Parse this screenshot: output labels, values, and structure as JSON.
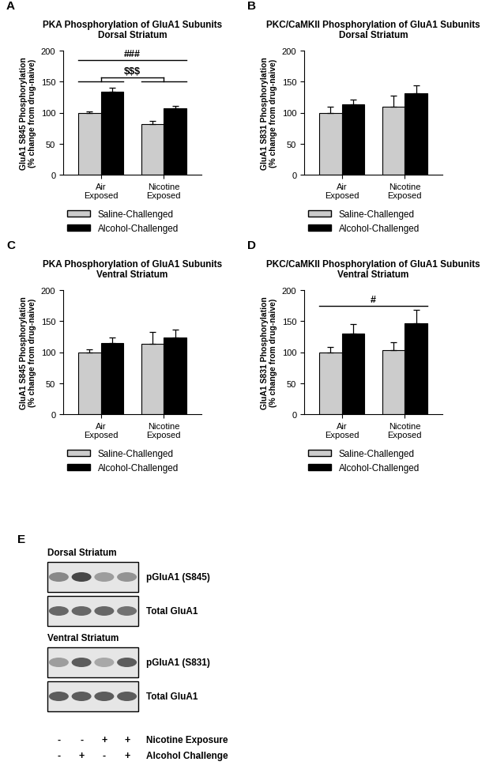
{
  "chart_data": [
    {
      "type": "bar",
      "panel_label": "A",
      "title": "PKA Phosphorylation of GluA1 Subunits\nDorsal Striatum",
      "y_label": "GluA1 S845 Phosphorylation\n(% change from drug-naive)",
      "categories": [
        "Air\nExposed",
        "Nicotine\nExposed"
      ],
      "series": [
        {
          "name": "Saline-Challenged",
          "color": "#cccccc",
          "values": [
            100,
            82
          ],
          "errors": [
            2,
            4
          ]
        },
        {
          "name": "Alcohol-Challenged",
          "color": "#000000",
          "values": [
            134,
            107
          ],
          "errors": [
            6,
            4
          ]
        }
      ],
      "ylim": [
        0,
        200
      ],
      "yticks": [
        0,
        50,
        100,
        150,
        200
      ],
      "legend": "below",
      "annotations": [
        {
          "text": "###",
          "type": "line",
          "y": 185
        },
        {
          "text": "$$$",
          "type": "bracket",
          "y": 150,
          "y_top": 157
        }
      ]
    },
    {
      "type": "bar",
      "panel_label": "B",
      "title": "PKC/CaMKII Phosphorylation of GluA1 Subunits\nDorsal Striatum",
      "y_label": "GluA1 S831 Phosphorylation\n(% change from drug-naive)",
      "categories": [
        "Air\nExposed",
        "Nicotine\nExposed"
      ],
      "series": [
        {
          "name": "Saline-Challenged",
          "color": "#cccccc",
          "values": [
            100,
            110
          ],
          "errors": [
            10,
            18
          ]
        },
        {
          "name": "Alcohol-Challenged",
          "color": "#000000",
          "values": [
            113,
            131
          ],
          "errors": [
            8,
            13
          ]
        }
      ],
      "ylim": [
        0,
        200
      ],
      "yticks": [
        0,
        50,
        100,
        150,
        200
      ],
      "legend": "below",
      "annotations": []
    },
    {
      "type": "bar",
      "panel_label": "C",
      "title": "PKA Phosphorylation of GluA1 Subunits\nVentral Striatum",
      "y_label": "GluA1 S845 Phosphorylation\n(% change from drug-naive)",
      "categories": [
        "Air\nExposed",
        "Nicotine\nExposed"
      ],
      "series": [
        {
          "name": "Saline-Challenged",
          "color": "#cccccc",
          "values": [
            100,
            113
          ],
          "errors": [
            4,
            19
          ]
        },
        {
          "name": "Alcohol-Challenged",
          "color": "#000000",
          "values": [
            115,
            123
          ],
          "errors": [
            8,
            13
          ]
        }
      ],
      "ylim": [
        0,
        200
      ],
      "yticks": [
        0,
        50,
        100,
        150,
        200
      ],
      "legend": "below",
      "annotations": []
    },
    {
      "type": "bar",
      "panel_label": "D",
      "title": "PKC/CaMKII Phosphorylation of GluA1 Subunits\nVentral Striatum",
      "y_label": "GluA1 S831 Phosphorylation\n(% change from drug-naive)",
      "categories": [
        "Air\nExposed",
        "Nicotine\nExposed"
      ],
      "series": [
        {
          "name": "Saline-Challenged",
          "color": "#cccccc",
          "values": [
            100,
            103
          ],
          "errors": [
            8,
            13
          ]
        },
        {
          "name": "Alcohol-Challenged",
          "color": "#000000",
          "values": [
            130,
            146
          ],
          "errors": [
            15,
            22
          ]
        }
      ],
      "ylim": [
        0,
        200
      ],
      "yticks": [
        0,
        50,
        100,
        150,
        200
      ],
      "legend": "below",
      "annotations": [
        {
          "text": "#",
          "type": "line",
          "y": 175
        }
      ]
    }
  ],
  "blot": {
    "panel_label": "E",
    "sections": [
      {
        "title": "Dorsal Striatum",
        "rows": [
          {
            "label": "pGluA1 (S845)",
            "intensity": [
              0.55,
              0.85,
              0.45,
              0.5
            ]
          },
          {
            "label": "Total GluA1",
            "intensity": [
              0.7,
              0.7,
              0.7,
              0.65
            ]
          }
        ]
      },
      {
        "title": "Ventral Striatum",
        "rows": [
          {
            "label": "pGluA1 (S831)",
            "intensity": [
              0.45,
              0.75,
              0.4,
              0.75
            ]
          },
          {
            "label": "Total GluA1",
            "intensity": [
              0.75,
              0.75,
              0.75,
              0.75
            ]
          }
        ]
      }
    ],
    "conditions": [
      {
        "label": "Nicotine Exposure",
        "signs": [
          "-",
          "-",
          "+",
          "+"
        ]
      },
      {
        "label": "Alcohol Challenge",
        "signs": [
          "-",
          "+",
          "-",
          "+"
        ]
      }
    ]
  }
}
